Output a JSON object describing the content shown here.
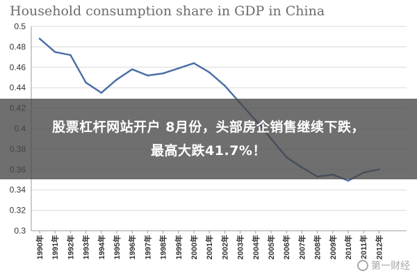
{
  "chart_data": {
    "type": "line",
    "title": "Household consumption share in GDP in China",
    "xlabel": "",
    "ylabel": "",
    "ylim": [
      0.3,
      0.5
    ],
    "yticks": [
      "0.3",
      "0.32",
      "0.34",
      "0.36",
      "0.38",
      "0.4",
      "0.42",
      "0.44",
      "0.46",
      "0.48",
      "0.5"
    ],
    "categories": [
      "1990年",
      "1991年",
      "1992年",
      "1993年",
      "1994年",
      "1995年",
      "1996年",
      "1997年",
      "1998年",
      "1999年",
      "2000年",
      "2001年",
      "2002年",
      "2003年",
      "2004年",
      "2005年",
      "2006年",
      "2007年",
      "2008年",
      "2009年",
      "2010年",
      "2011年",
      "2012年"
    ],
    "series": [
      {
        "values": [
          0.488,
          0.475,
          0.472,
          0.445,
          0.435,
          0.448,
          0.458,
          0.452,
          0.454,
          0.459,
          0.464,
          0.455,
          0.442,
          0.425,
          0.408,
          0.39,
          0.372,
          0.362,
          0.353,
          0.355,
          0.349,
          0.357,
          0.36
        ]
      }
    ],
    "grid": true,
    "line_color": "#4a6fa5"
  },
  "overlay": {
    "line1": "股票杠杆网站开户 8月份，头部房企销售继续下跌，",
    "line2": "最高大跌41.7%！"
  },
  "watermark": {
    "text": "第一财经"
  }
}
